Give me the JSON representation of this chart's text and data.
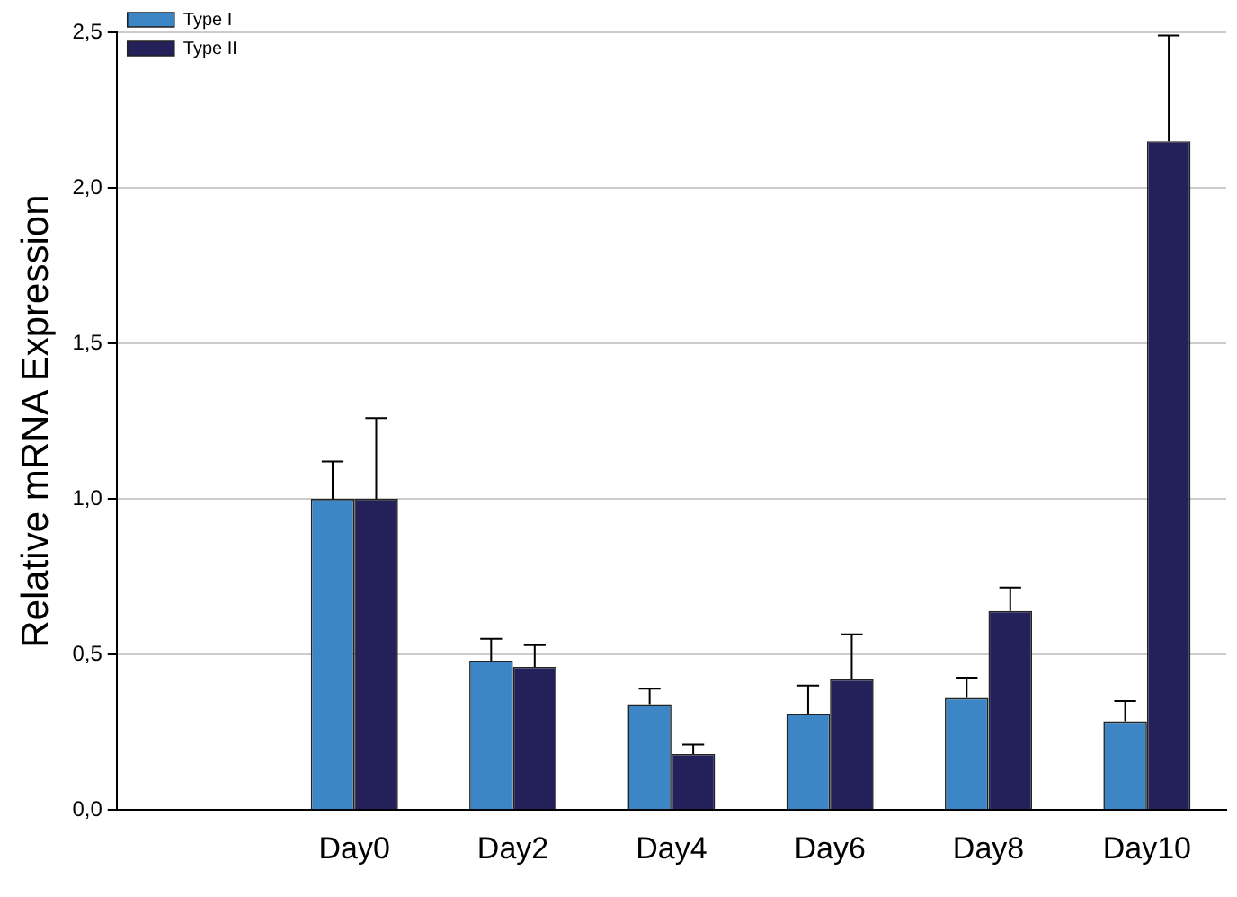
{
  "chart_data": {
    "type": "bar",
    "ylabel": "Relative mRNA Expression",
    "categories": [
      null,
      "Day0",
      "Day2",
      "Day4",
      "Day6",
      "Day8",
      "Day10"
    ],
    "series": [
      {
        "name": "Type I",
        "color": "#3d86c6",
        "values": [
          null,
          1.0,
          0.48,
          0.34,
          0.31,
          0.36,
          0.285
        ],
        "errors": [
          null,
          [
            1.0,
            1.12
          ],
          [
            0.48,
            0.55
          ],
          [
            0.34,
            0.39
          ],
          [
            0.31,
            0.4
          ],
          [
            0.36,
            0.425
          ],
          [
            0.285,
            0.35
          ]
        ]
      },
      {
        "name": "Type II",
        "color": "#24205a",
        "values": [
          null,
          1.0,
          0.46,
          0.18,
          0.42,
          0.64,
          2.15
        ],
        "errors": [
          null,
          [
            1.0,
            1.26
          ],
          [
            0.46,
            0.53
          ],
          [
            0.18,
            0.21
          ],
          [
            0.42,
            0.565
          ],
          [
            0.64,
            0.715
          ],
          [
            2.15,
            2.49
          ]
        ]
      }
    ],
    "ylim": [
      0,
      2.5
    ],
    "yticks": [
      {
        "value": 0,
        "label": "0,0"
      },
      {
        "value": 0.5,
        "label": "0,5"
      },
      {
        "value": 1,
        "label": "1,0"
      },
      {
        "value": 1.5,
        "label": "1,5"
      },
      {
        "value": 2,
        "label": "2,0"
      },
      {
        "value": 2.5,
        "label": "2,5"
      }
    ],
    "grid": "y",
    "legend": "top left"
  }
}
